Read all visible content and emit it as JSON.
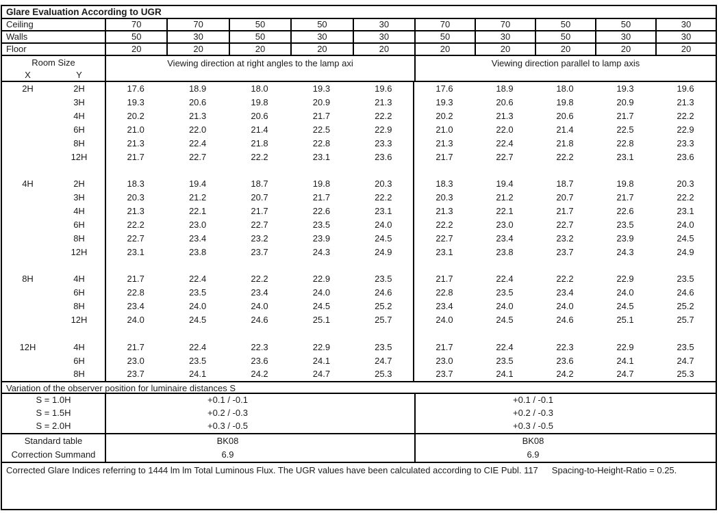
{
  "title": "Glare Evaluation According to UGR",
  "surface_rows": [
    {
      "label": "Ceiling",
      "left": [
        "70",
        "70",
        "50",
        "50",
        "30"
      ],
      "right": [
        "70",
        "70",
        "50",
        "50",
        "30"
      ]
    },
    {
      "label": "Walls",
      "left": [
        "50",
        "30",
        "50",
        "30",
        "30"
      ],
      "right": [
        "50",
        "30",
        "50",
        "30",
        "30"
      ]
    },
    {
      "label": "Floor",
      "left": [
        "20",
        "20",
        "20",
        "20",
        "20"
      ],
      "right": [
        "20",
        "20",
        "20",
        "20",
        "20"
      ]
    }
  ],
  "header": {
    "room_size": "Room Size",
    "x_label": "X",
    "y_label": "Y",
    "left_heading": "Viewing direction at right angles to the lamp axi",
    "right_heading": "Viewing direction parallel to lamp axis"
  },
  "ugr_blocks": [
    {
      "x": "2H",
      "rows": [
        {
          "y": "2H",
          "left": [
            "17.6",
            "18.9",
            "18.0",
            "19.3",
            "19.6"
          ],
          "right": [
            "17.6",
            "18.9",
            "18.0",
            "19.3",
            "19.6"
          ]
        },
        {
          "y": "3H",
          "left": [
            "19.3",
            "20.6",
            "19.8",
            "20.9",
            "21.3"
          ],
          "right": [
            "19.3",
            "20.6",
            "19.8",
            "20.9",
            "21.3"
          ]
        },
        {
          "y": "4H",
          "left": [
            "20.2",
            "21.3",
            "20.6",
            "21.7",
            "22.2"
          ],
          "right": [
            "20.2",
            "21.3",
            "20.6",
            "21.7",
            "22.2"
          ]
        },
        {
          "y": "6H",
          "left": [
            "21.0",
            "22.0",
            "21.4",
            "22.5",
            "22.9"
          ],
          "right": [
            "21.0",
            "22.0",
            "21.4",
            "22.5",
            "22.9"
          ]
        },
        {
          "y": "8H",
          "left": [
            "21.3",
            "22.4",
            "21.8",
            "22.8",
            "23.3"
          ],
          "right": [
            "21.3",
            "22.4",
            "21.8",
            "22.8",
            "23.3"
          ]
        },
        {
          "y": "12H",
          "left": [
            "21.7",
            "22.7",
            "22.2",
            "23.1",
            "23.6"
          ],
          "right": [
            "21.7",
            "22.7",
            "22.2",
            "23.1",
            "23.6"
          ]
        }
      ]
    },
    {
      "x": "4H",
      "rows": [
        {
          "y": "2H",
          "left": [
            "18.3",
            "19.4",
            "18.7",
            "19.8",
            "20.3"
          ],
          "right": [
            "18.3",
            "19.4",
            "18.7",
            "19.8",
            "20.3"
          ]
        },
        {
          "y": "3H",
          "left": [
            "20.3",
            "21.2",
            "20.7",
            "21.7",
            "22.2"
          ],
          "right": [
            "20.3",
            "21.2",
            "20.7",
            "21.7",
            "22.2"
          ]
        },
        {
          "y": "4H",
          "left": [
            "21.3",
            "22.1",
            "21.7",
            "22.6",
            "23.1"
          ],
          "right": [
            "21.3",
            "22.1",
            "21.7",
            "22.6",
            "23.1"
          ]
        },
        {
          "y": "6H",
          "left": [
            "22.2",
            "23.0",
            "22.7",
            "23.5",
            "24.0"
          ],
          "right": [
            "22.2",
            "23.0",
            "22.7",
            "23.5",
            "24.0"
          ]
        },
        {
          "y": "8H",
          "left": [
            "22.7",
            "23.4",
            "23.2",
            "23.9",
            "24.5"
          ],
          "right": [
            "22.7",
            "23.4",
            "23.2",
            "23.9",
            "24.5"
          ]
        },
        {
          "y": "12H",
          "left": [
            "23.1",
            "23.8",
            "23.7",
            "24.3",
            "24.9"
          ],
          "right": [
            "23.1",
            "23.8",
            "23.7",
            "24.3",
            "24.9"
          ]
        }
      ]
    },
    {
      "x": "8H",
      "rows": [
        {
          "y": "4H",
          "left": [
            "21.7",
            "22.4",
            "22.2",
            "22.9",
            "23.5"
          ],
          "right": [
            "21.7",
            "22.4",
            "22.2",
            "22.9",
            "23.5"
          ]
        },
        {
          "y": "6H",
          "left": [
            "22.8",
            "23.5",
            "23.4",
            "24.0",
            "24.6"
          ],
          "right": [
            "22.8",
            "23.5",
            "23.4",
            "24.0",
            "24.6"
          ]
        },
        {
          "y": "8H",
          "left": [
            "23.4",
            "24.0",
            "24.0",
            "24.5",
            "25.2"
          ],
          "right": [
            "23.4",
            "24.0",
            "24.0",
            "24.5",
            "25.2"
          ]
        },
        {
          "y": "12H",
          "left": [
            "24.0",
            "24.5",
            "24.6",
            "25.1",
            "25.7"
          ],
          "right": [
            "24.0",
            "24.5",
            "24.6",
            "25.1",
            "25.7"
          ]
        }
      ]
    },
    {
      "x": "12H",
      "rows": [
        {
          "y": "4H",
          "left": [
            "21.7",
            "22.4",
            "22.3",
            "22.9",
            "23.5"
          ],
          "right": [
            "21.7",
            "22.4",
            "22.3",
            "22.9",
            "23.5"
          ]
        },
        {
          "y": "6H",
          "left": [
            "23.0",
            "23.5",
            "23.6",
            "24.1",
            "24.7"
          ],
          "right": [
            "23.0",
            "23.5",
            "23.6",
            "24.1",
            "24.7"
          ]
        },
        {
          "y": "8H",
          "left": [
            "23.7",
            "24.1",
            "24.2",
            "24.7",
            "25.3"
          ],
          "right": [
            "23.7",
            "24.1",
            "24.2",
            "24.7",
            "25.3"
          ]
        }
      ]
    }
  ],
  "variation": {
    "heading": "Variation of the observer position for luminaire distances S",
    "rows": [
      {
        "label": "S = 1.0H",
        "left": "+0.1 / -0.1",
        "right": "+0.1 / -0.1"
      },
      {
        "label": "S = 1.5H",
        "left": "+0.2 / -0.3",
        "right": "+0.2 / -0.3"
      },
      {
        "label": "S = 2.0H",
        "left": "+0.3 / -0.5",
        "right": "+0.3 / -0.5"
      }
    ]
  },
  "summary_rows": [
    {
      "label": "Standard table",
      "left": "BK08",
      "right": "BK08"
    },
    {
      "label": "Correction Summand",
      "left": "6.9",
      "right": "6.9"
    }
  ],
  "footer": {
    "text1": "Corrected Glare Indices referring to 1444 lm lm Total Luminous Flux. The UGR values have been calculated according to CIE Publ. 117",
    "text2": "Spacing-to-Height-Ratio = 0.25."
  }
}
